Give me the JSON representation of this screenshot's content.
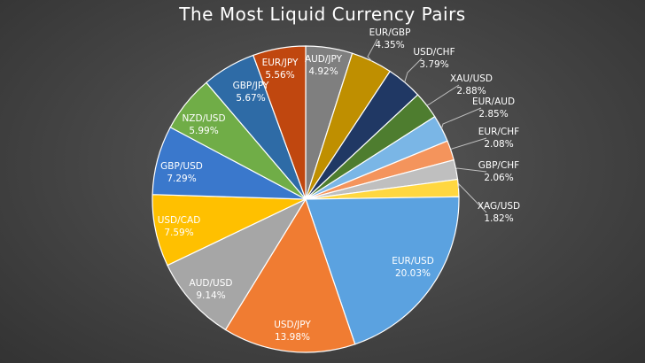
{
  "chart_data": {
    "type": "pie",
    "title": "The Most Liquid Currency Pairs",
    "legend": "none",
    "slices": [
      {
        "label": "AUD/JPY",
        "value": 4.92,
        "value_label": "4.92%",
        "color": "#7f7f7f"
      },
      {
        "label": "EUR/GBP",
        "value": 4.35,
        "value_label": "4.35%",
        "color": "#bf8f00"
      },
      {
        "label": "USD/CHF",
        "value": 3.79,
        "value_label": "3.79%",
        "color": "#203864"
      },
      {
        "label": "XAU/USD",
        "value": 2.88,
        "value_label": "2.88%",
        "color": "#4e7d2f"
      },
      {
        "label": "EUR/AUD",
        "value": 2.85,
        "value_label": "2.85%",
        "color": "#7ab6e6"
      },
      {
        "label": "EUR/CHF",
        "value": 2.08,
        "value_label": "2.08%",
        "color": "#f4945c"
      },
      {
        "label": "GBP/CHF",
        "value": 2.06,
        "value_label": "2.06%",
        "color": "#bfbfbf"
      },
      {
        "label": "XAG/USD",
        "value": 1.82,
        "value_label": "1.82%",
        "color": "#ffd740"
      },
      {
        "label": "EUR/USD",
        "value": 20.03,
        "value_label": "20.03%",
        "color": "#5ba2e0"
      },
      {
        "label": "USD/JPY",
        "value": 13.98,
        "value_label": "13.98%",
        "color": "#f07c32"
      },
      {
        "label": "AUD/USD",
        "value": 9.14,
        "value_label": "9.14%",
        "color": "#a6a6a6"
      },
      {
        "label": "USD/CAD",
        "value": 7.59,
        "value_label": "7.59%",
        "color": "#ffc000"
      },
      {
        "label": "GBP/USD",
        "value": 7.29,
        "value_label": "7.29%",
        "color": "#3a78cc"
      },
      {
        "label": "NZD/USD",
        "value": 5.99,
        "value_label": "5.99%",
        "color": "#70ad47"
      },
      {
        "label": "GBP/JPY",
        "value": 5.67,
        "value_label": "5.67%",
        "color": "#2e6ba6"
      },
      {
        "label": "EUR/JPY",
        "value": 5.56,
        "value_label": "5.56%",
        "color": "#c0470f"
      }
    ]
  }
}
